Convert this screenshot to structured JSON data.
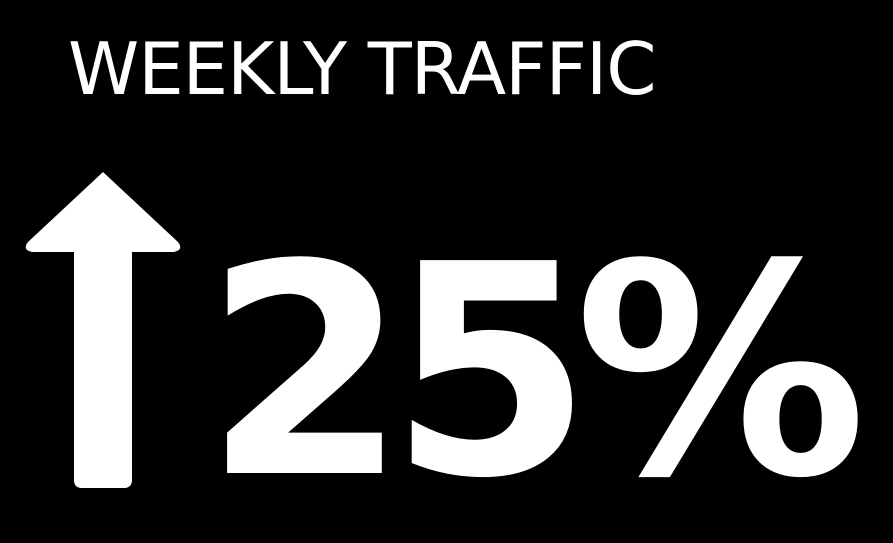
{
  "title": "WEEKLY TRAFFIC",
  "value": "25%",
  "trend_icon": "arrow-up-icon",
  "colors": {
    "background": "#000000",
    "foreground": "#ffffff"
  }
}
